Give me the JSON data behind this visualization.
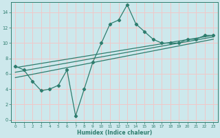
{
  "title": "",
  "xlabel": "Humidex (Indice chaleur)",
  "xlim": [
    -0.5,
    23.5
  ],
  "ylim": [
    -0.3,
    15.3
  ],
  "xticks": [
    0,
    1,
    2,
    3,
    4,
    5,
    6,
    7,
    8,
    9,
    10,
    11,
    12,
    13,
    14,
    15,
    16,
    17,
    18,
    19,
    20,
    21,
    22,
    23
  ],
  "yticks": [
    0,
    2,
    4,
    6,
    8,
    10,
    12,
    14
  ],
  "bg_color": "#cde8ec",
  "grid_color": "#f0c8c8",
  "line_color": "#2e7d6e",
  "line1_x": [
    0,
    1,
    2,
    3,
    4,
    5,
    6,
    7,
    8,
    9,
    10,
    11,
    12,
    13,
    14,
    15,
    16,
    17,
    18,
    19,
    20,
    21,
    22,
    23
  ],
  "line1_y": [
    7.0,
    6.5,
    5.0,
    3.8,
    4.0,
    4.5,
    6.5,
    0.5,
    4.0,
    7.5,
    10.0,
    12.5,
    13.0,
    15.0,
    12.5,
    11.5,
    10.5,
    10.0,
    10.0,
    10.0,
    10.5,
    10.5,
    11.0,
    11.0
  ],
  "line2_x": [
    0,
    23
  ],
  "line2_y": [
    6.8,
    11.0
  ],
  "line3_x": [
    0,
    23
  ],
  "line3_y": [
    6.2,
    10.8
  ],
  "line4_x": [
    0,
    23
  ],
  "line4_y": [
    5.5,
    10.5
  ]
}
